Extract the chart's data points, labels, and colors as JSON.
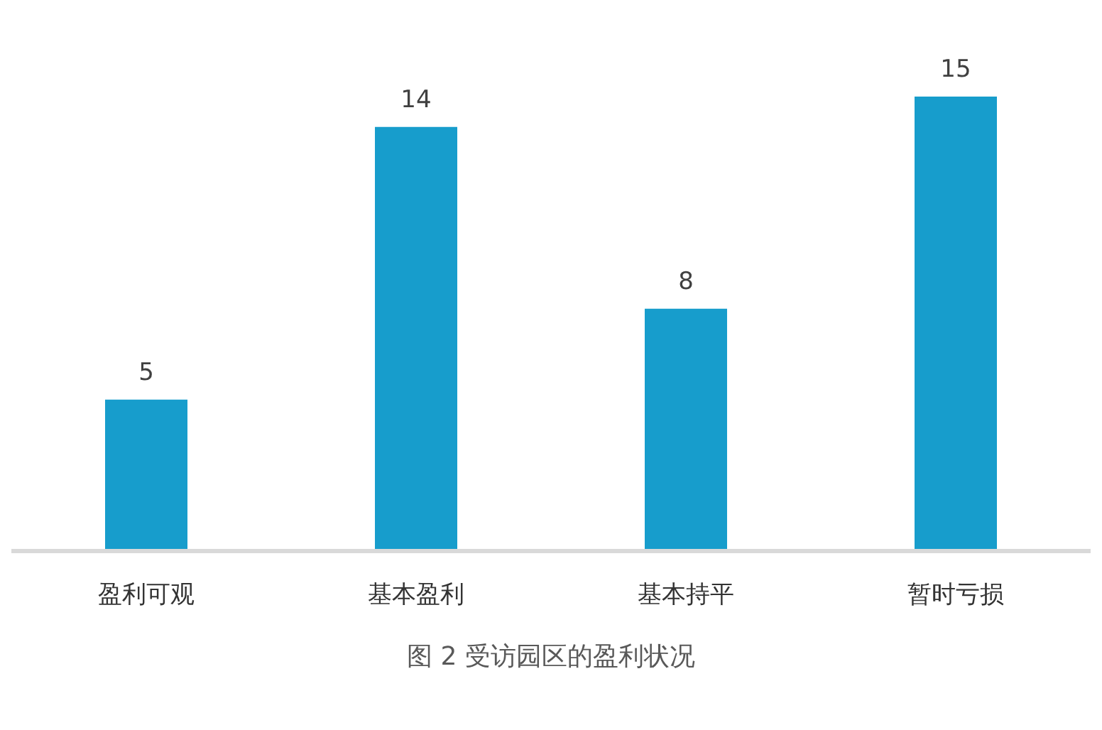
{
  "chart_data": {
    "type": "bar",
    "categories": [
      "盈利可观",
      "基本盈利",
      "基本持平",
      "暂时亏损"
    ],
    "values": [
      5,
      14,
      8,
      15
    ],
    "color": "#179dcc",
    "data_labels": true,
    "annotations": [
      "图 2  受访园区的盈利状况"
    ]
  }
}
